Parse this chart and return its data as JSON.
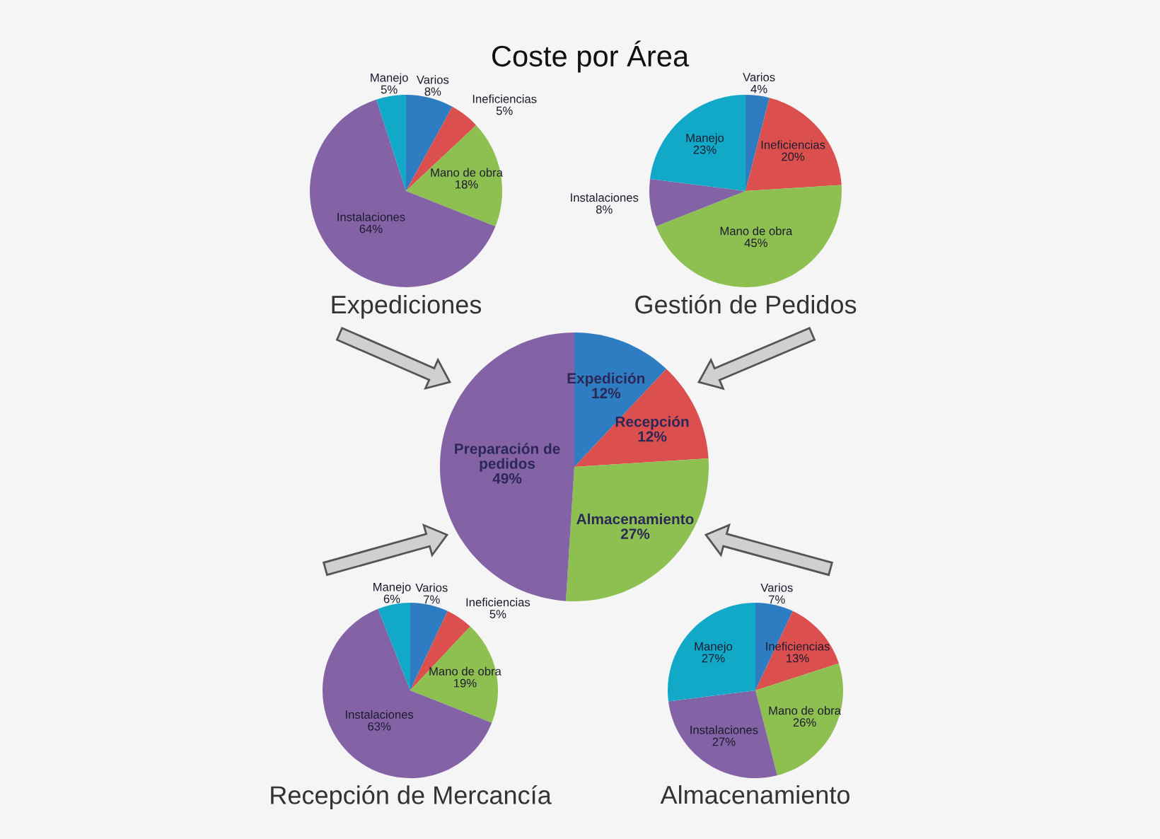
{
  "chart_data": [
    {
      "type": "pie",
      "title": "Expediciones",
      "categories": [
        "Varios",
        "Ineficiencias",
        "Mano de obra",
        "Instalaciones",
        "Manejo"
      ],
      "values": [
        8,
        5,
        18,
        64,
        5
      ],
      "value_labels": [
        "8%",
        "5%",
        "18%",
        "64%",
        "5%"
      ],
      "colors": [
        "#2e7dc2",
        "#dc4f4f",
        "#8dc050",
        "#8462a6",
        "#12a8c8"
      ]
    },
    {
      "type": "pie",
      "title": "Gestión de Pedidos",
      "categories": [
        "Varios",
        "Ineficiencias",
        "Mano de obra",
        "Instalaciones",
        "Manejo"
      ],
      "values": [
        4,
        20,
        45,
        8,
        23
      ],
      "value_labels": [
        "4%",
        "20%",
        "45%",
        "8%",
        "23%"
      ],
      "colors": [
        "#2e7dc2",
        "#dc4f4f",
        "#8dc050",
        "#8462a6",
        "#12a8c8"
      ]
    },
    {
      "type": "pie",
      "title": "Coste por Área",
      "categories": [
        "Expedición",
        "Recepción",
        "Almacenamiento",
        "Preparación de pedidos"
      ],
      "values": [
        12,
        12,
        27,
        49
      ],
      "value_labels": [
        "12%",
        "12%",
        "27%",
        "49%"
      ],
      "colors": [
        "#2e7dc2",
        "#dc4f4f",
        "#8dc050",
        "#8462a6"
      ]
    },
    {
      "type": "pie",
      "title": "Recepción de Mercancía",
      "categories": [
        "Varios",
        "Ineficiencias",
        "Mano de obra",
        "Instalaciones",
        "Manejo"
      ],
      "values": [
        7,
        5,
        19,
        63,
        6
      ],
      "value_labels": [
        "7%",
        "5%",
        "19%",
        "63%",
        "6%"
      ],
      "colors": [
        "#2e7dc2",
        "#dc4f4f",
        "#8dc050",
        "#8462a6",
        "#12a8c8"
      ]
    },
    {
      "type": "pie",
      "title": "Almacenamiento",
      "categories": [
        "Varios",
        "Ineficiencias",
        "Mano de obra",
        "Instalaciones",
        "Manejo"
      ],
      "values": [
        7,
        13,
        26,
        27,
        27
      ],
      "value_labels": [
        "7%",
        "13%",
        "26%",
        "27%",
        "27%"
      ],
      "colors": [
        "#2e7dc2",
        "#dc4f4f",
        "#8dc050",
        "#8462a6",
        "#12a8c8"
      ]
    }
  ]
}
